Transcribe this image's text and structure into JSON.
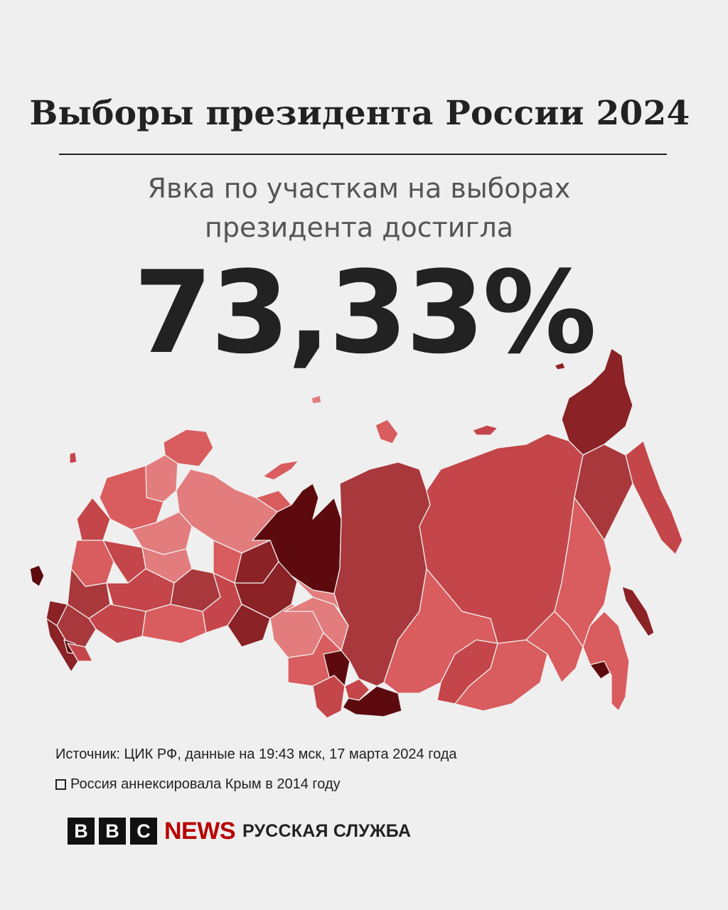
{
  "title": "Выборы президента России 2024",
  "subtitle": {
    "line1": "Явка по участкам на выборах",
    "line2": "президента достигла"
  },
  "turnout_value": "73,33%",
  "map": {
    "colors": {
      "lightest": "#e27c7d",
      "light": "#d95c5e",
      "medium": "#c4464a",
      "medium_dark": "#a8383c",
      "dark": "#8a2226",
      "darkest": "#5c0a0e",
      "background": "#f0efef"
    }
  },
  "footer": {
    "source": "Источник: ЦИК РФ, данные на 19:43 мск, 17 марта 2024 года",
    "crimea_note": "Россия аннексировала Крым в 2014 году"
  },
  "logo": {
    "bbc_letters": [
      "B",
      "B",
      "C"
    ],
    "news": "NEWS",
    "service": "РУССКАЯ СЛУЖБА"
  }
}
